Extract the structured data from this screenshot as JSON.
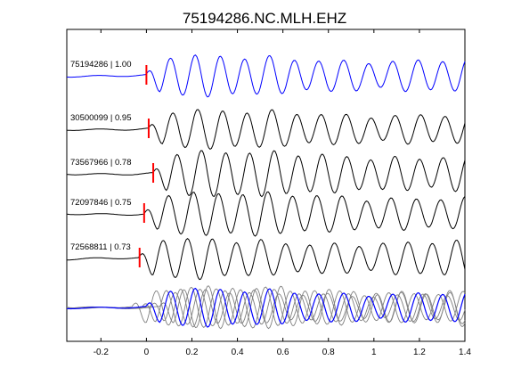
{
  "chart_data": {
    "type": "line",
    "title": "75194286.NC.MLH.EHZ",
    "xlabel": "",
    "ylabel": "",
    "xlim": [
      -0.35,
      1.4
    ],
    "xticks": [
      -0.2,
      0,
      0.2,
      0.4,
      0.6,
      0.8,
      1,
      1.2,
      1.4
    ],
    "xtick_labels": [
      "-0.2",
      "0",
      "0.2",
      "0.4",
      "0.6",
      "0.8",
      "1",
      "1.2",
      "1.4"
    ],
    "grid": false,
    "legend": "none",
    "colors": {
      "master": "#0000ff",
      "trace": "#000000",
      "stack": "#808080",
      "pick": "#ff0000"
    },
    "series": [
      {
        "label": "75194286 | 1.00",
        "pick_time": 0.0,
        "amplitude": 0.85,
        "freq": 9.2,
        "color": "#0000ff",
        "seed": 1
      },
      {
        "label": "30500099 | 0.95",
        "pick_time": 0.01,
        "amplitude": 0.8,
        "freq": 9.2,
        "color": "#000000",
        "seed": 2
      },
      {
        "label": "73567966 | 0.78",
        "pick_time": 0.03,
        "amplitude": 0.95,
        "freq": 9.4,
        "color": "#000000",
        "seed": 3
      },
      {
        "label": "72097846 | 0.75",
        "pick_time": -0.01,
        "amplitude": 0.9,
        "freq": 9.2,
        "color": "#000000",
        "seed": 4
      },
      {
        "label": "72568811 | 0.73",
        "pick_time": -0.03,
        "amplitude": 0.85,
        "freq": 9.3,
        "color": "#000000",
        "seed": 5
      }
    ]
  }
}
